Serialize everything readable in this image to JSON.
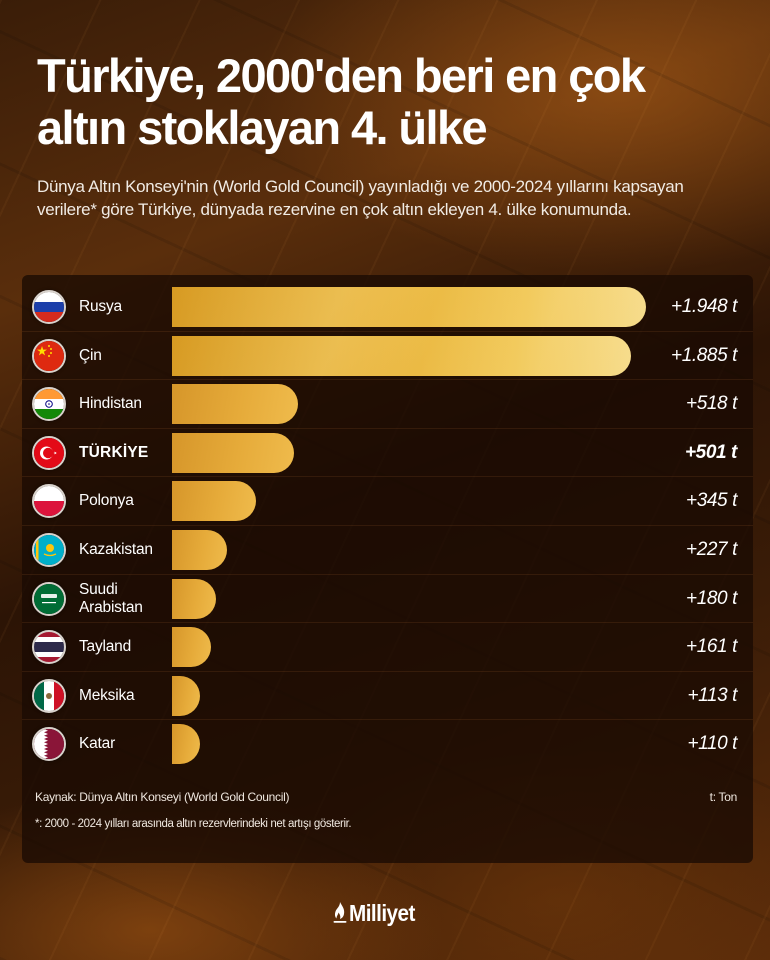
{
  "header": {
    "title_line1": "Türkiye, 2000'den beri en çok",
    "title_line2": "altın stoklayan 4. ülke",
    "subtitle": "Dünya Altın Konseyi'nin (World Gold Council) yayınladığı ve 2000-2024 yıllarını kapsayan verilere* göre Türkiye, dünyada rezervine en çok altın ekleyen 4. ülke konumunda."
  },
  "chart_data": {
    "type": "bar",
    "orientation": "horizontal",
    "title": "Türkiye, 2000'den beri en çok altın stoklayan 4. ülke",
    "xlabel": "",
    "ylabel": "",
    "unit": "t (Ton)",
    "categories": [
      "Rusya",
      "Çin",
      "Hindistan",
      "TÜRKİYE",
      "Polonya",
      "Kazakistan",
      "Suudi Arabistan",
      "Tayland",
      "Meksika",
      "Katar"
    ],
    "values": [
      1948,
      1885,
      518,
      501,
      345,
      227,
      180,
      161,
      113,
      110
    ],
    "highlight": "TÜRKİYE",
    "grid": false,
    "legend": "none",
    "bar_color": "#e8b23a"
  },
  "rows": [
    {
      "country": "Rusya",
      "value": 1948,
      "label": "+1.948 t",
      "flag": "russia-flag-icon",
      "bold": false
    },
    {
      "country": "Çin",
      "value": 1885,
      "label": "+1.885 t",
      "flag": "china-flag-icon",
      "bold": false
    },
    {
      "country": "Hindistan",
      "value": 518,
      "label": "+518 t",
      "flag": "india-flag-icon",
      "bold": false
    },
    {
      "country": "TÜRKİYE",
      "value": 501,
      "label": "+501 t",
      "flag": "turkey-flag-icon",
      "bold": true
    },
    {
      "country": "Polonya",
      "value": 345,
      "label": "+345 t",
      "flag": "poland-flag-icon",
      "bold": false
    },
    {
      "country": "Kazakistan",
      "value": 227,
      "label": "+227 t",
      "flag": "kazakhstan-flag-icon",
      "bold": false
    },
    {
      "country": "Suudi Arabistan",
      "value": 180,
      "label": "+180 t",
      "flag": "saudi-arabia-flag-icon",
      "bold": false
    },
    {
      "country": "Tayland",
      "value": 161,
      "label": "+161 t",
      "flag": "thailand-flag-icon",
      "bold": false
    },
    {
      "country": "Meksika",
      "value": 113,
      "label": "+113 t",
      "flag": "mexico-flag-icon",
      "bold": false
    },
    {
      "country": "Katar",
      "value": 110,
      "label": "+110 t",
      "flag": "qatar-flag-icon",
      "bold": false
    }
  ],
  "footer": {
    "source": "Kaynak: Dünya Altın Konseyi (World Gold Council)",
    "unit_note": "t: Ton",
    "footnote": "*: 2000 - 2024 yılları arasında altın rezervlerindeki net artışı gösterir."
  },
  "brand": {
    "logo_text": "Milliyet",
    "logo_icon": "flame-icon"
  },
  "colors": {
    "gold_start": "#d79a22",
    "gold_end": "#f6dc8c",
    "panel_bg": "#1a0a03"
  }
}
